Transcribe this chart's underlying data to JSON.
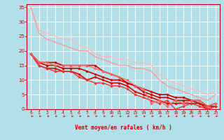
{
  "background_color": "#b2e0e8",
  "grid_color": "#ffffff",
  "xlim": [
    -0.5,
    23.5
  ],
  "ylim": [
    0,
    36
  ],
  "yticks": [
    0,
    5,
    10,
    15,
    20,
    25,
    30,
    35
  ],
  "xticks": [
    0,
    1,
    2,
    3,
    4,
    5,
    6,
    7,
    8,
    9,
    10,
    11,
    12,
    13,
    14,
    15,
    16,
    17,
    18,
    19,
    20,
    21,
    22,
    23
  ],
  "xlabel": "Vent moyen/en rafales ( km/h )",
  "xlabel_color": "#cc0000",
  "tick_color": "#cc0000",
  "series": [
    {
      "x": [
        0,
        1,
        2,
        3,
        4,
        5,
        6,
        7,
        8,
        9,
        10,
        11,
        12,
        13,
        14,
        15,
        16,
        17,
        18,
        19,
        20,
        21,
        22,
        23
      ],
      "y": [
        35,
        27,
        26,
        25,
        24,
        24,
        22,
        21,
        19,
        18,
        18,
        17,
        17,
        16,
        16,
        15,
        12,
        10,
        9,
        8,
        7,
        6,
        5,
        6
      ],
      "color": "#ffbbbb",
      "lw": 1.0,
      "marker": null,
      "zorder": 2
    },
    {
      "x": [
        0,
        1,
        2,
        3,
        4,
        5,
        6,
        7,
        8,
        9,
        10,
        11,
        12,
        13,
        14,
        15,
        16,
        17,
        18,
        19,
        20,
        21,
        22,
        23
      ],
      "y": [
        35,
        26,
        24,
        23,
        22,
        21,
        20,
        20,
        18,
        17,
        16,
        15,
        15,
        14,
        14,
        13,
        10,
        8,
        7,
        6,
        5,
        4,
        3,
        5
      ],
      "color": "#ff9999",
      "lw": 1.0,
      "marker": null,
      "zorder": 2
    },
    {
      "x": [
        0,
        1,
        2,
        3,
        4,
        5,
        6,
        7,
        8,
        9,
        10,
        11,
        12,
        13,
        14,
        15,
        16,
        17,
        18,
        19,
        20,
        21,
        22,
        23
      ],
      "y": [
        19,
        16,
        16,
        16,
        15,
        15,
        15,
        15,
        15,
        13,
        12,
        11,
        9,
        8,
        7,
        6,
        5,
        5,
        4,
        4,
        3,
        3,
        1,
        2
      ],
      "color": "#cc0000",
      "lw": 1.2,
      "marker": "D",
      "ms": 1.8,
      "zorder": 3
    },
    {
      "x": [
        0,
        1,
        2,
        3,
        4,
        5,
        6,
        7,
        8,
        9,
        10,
        11,
        12,
        13,
        14,
        15,
        16,
        17,
        18,
        19,
        20,
        21,
        22,
        23
      ],
      "y": [
        19,
        16,
        15,
        15,
        14,
        14,
        14,
        13,
        12,
        11,
        10,
        10,
        9,
        8,
        6,
        5,
        4,
        4,
        3,
        3,
        3,
        2,
        1,
        1
      ],
      "color": "#cc0000",
      "lw": 1.2,
      "marker": "D",
      "ms": 1.8,
      "zorder": 3
    },
    {
      "x": [
        0,
        1,
        2,
        3,
        4,
        5,
        6,
        7,
        8,
        9,
        10,
        11,
        12,
        13,
        14,
        15,
        16,
        17,
        18,
        19,
        20,
        21,
        22,
        23
      ],
      "y": [
        19,
        15,
        14,
        14,
        13,
        13,
        12,
        10,
        11,
        10,
        9,
        9,
        8,
        6,
        5,
        4,
        3,
        2,
        2,
        2,
        2,
        2,
        0,
        1
      ],
      "color": "#dd0000",
      "lw": 1.2,
      "marker": "D",
      "ms": 1.8,
      "zorder": 3
    },
    {
      "x": [
        0,
        1,
        2,
        3,
        4,
        5,
        6,
        7,
        8,
        9,
        10,
        11,
        12,
        13,
        14,
        15,
        16,
        17,
        18,
        19,
        20,
        21,
        22,
        23
      ],
      "y": [
        19,
        15,
        14,
        13,
        13,
        13,
        11,
        10,
        9,
        9,
        8,
        8,
        7,
        5,
        4,
        3,
        2,
        3,
        0,
        1,
        2,
        1,
        0,
        1
      ],
      "color": "#ee3333",
      "lw": 1.0,
      "marker": "D",
      "ms": 1.8,
      "zorder": 3
    },
    {
      "x": [
        0,
        1,
        2,
        3,
        4,
        5,
        6,
        7,
        8,
        9,
        10,
        11,
        12,
        13,
        14,
        15,
        16,
        17,
        18,
        19,
        20,
        21,
        22,
        23
      ],
      "y": [
        19,
        16,
        16,
        15,
        15,
        15,
        15,
        15,
        14,
        13,
        12,
        11,
        10,
        8,
        7,
        2,
        3,
        1,
        3,
        2,
        3,
        3,
        1,
        2
      ],
      "color": "#ff6666",
      "lw": 1.0,
      "marker": "D",
      "ms": 1.8,
      "zorder": 3
    }
  ],
  "wind_arrows": [
    0,
    1,
    2,
    3,
    4,
    5,
    6,
    7,
    8,
    9,
    10,
    11,
    12,
    13,
    14,
    15,
    16,
    17,
    18,
    19,
    20,
    21,
    22,
    23
  ]
}
